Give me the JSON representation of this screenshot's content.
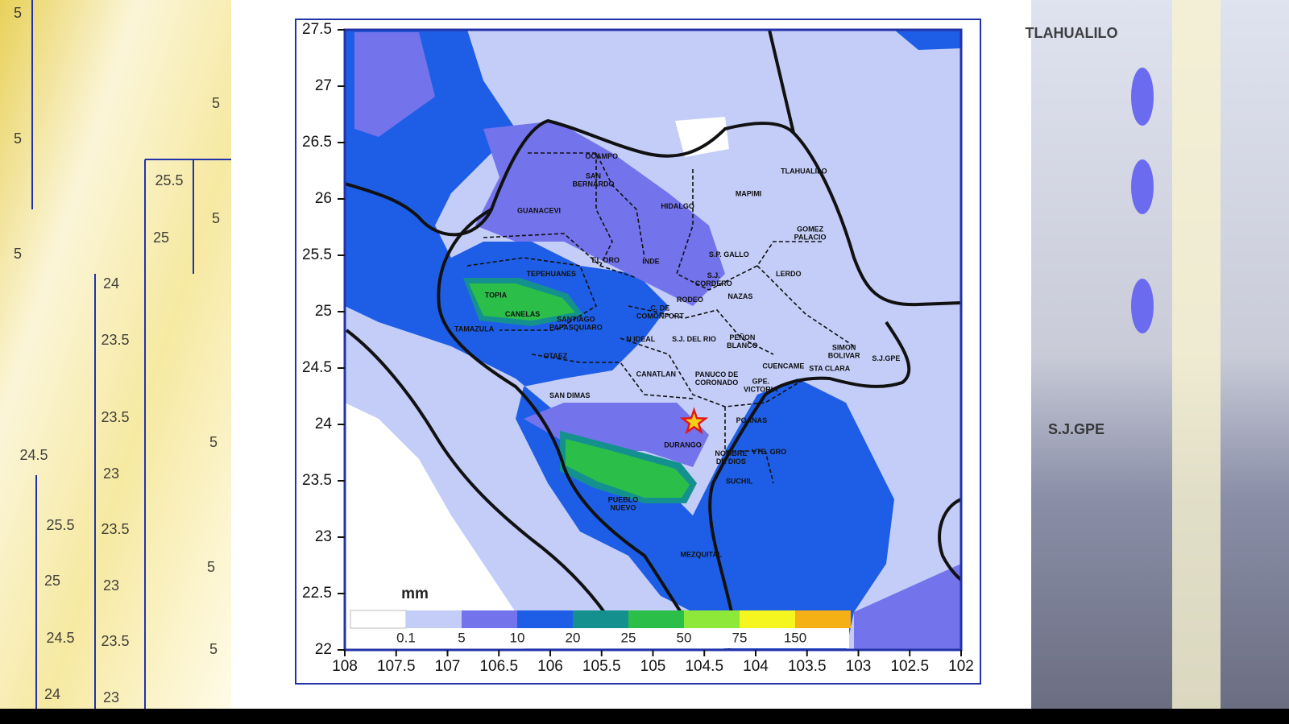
{
  "map": {
    "xlim": [
      108,
      102
    ],
    "ylim": [
      22,
      27.5
    ],
    "xticks": [
      108,
      107.5,
      107,
      106.5,
      106,
      105.5,
      105,
      104.5,
      104,
      103.5,
      103,
      102.5,
      102
    ],
    "yticks": [
      27.5,
      27,
      26.5,
      26,
      25.5,
      25,
      24.5,
      24,
      23.5,
      23,
      22.5,
      22
    ],
    "places": [
      {
        "lines": [
          "OCAMPO"
        ],
        "lon": 105.5,
        "lat": 26.37
      },
      {
        "lines": [
          "SAN",
          "BERNARDO"
        ],
        "lon": 105.58,
        "lat": 26.16
      },
      {
        "lines": [
          "GUANACEVI"
        ],
        "lon": 106.11,
        "lat": 25.89
      },
      {
        "lines": [
          "HIDALGO"
        ],
        "lon": 104.76,
        "lat": 25.93
      },
      {
        "lines": [
          "MAPIMI"
        ],
        "lon": 104.07,
        "lat": 26.04
      },
      {
        "lines": [
          "TLAHUALILO"
        ],
        "lon": 103.53,
        "lat": 26.24
      },
      {
        "lines": [
          "GOMEZ",
          "PALACIO"
        ],
        "lon": 103.47,
        "lat": 25.69
      },
      {
        "lines": [
          "S.P. GALLO"
        ],
        "lon": 104.26,
        "lat": 25.5
      },
      {
        "lines": [
          "EL ORO"
        ],
        "lon": 105.46,
        "lat": 25.45
      },
      {
        "lines": [
          "INDE"
        ],
        "lon": 105.02,
        "lat": 25.44
      },
      {
        "lines": [
          "TEPEHUANES"
        ],
        "lon": 105.99,
        "lat": 25.33
      },
      {
        "lines": [
          "S.J.",
          "CORDERO"
        ],
        "lon": 104.41,
        "lat": 25.28
      },
      {
        "lines": [
          "LERDO"
        ],
        "lon": 103.68,
        "lat": 25.33
      },
      {
        "lines": [
          "TOPIA"
        ],
        "lon": 106.53,
        "lat": 25.14
      },
      {
        "lines": [
          "RODEO"
        ],
        "lon": 104.64,
        "lat": 25.1
      },
      {
        "lines": [
          "NAZAS"
        ],
        "lon": 104.15,
        "lat": 25.13
      },
      {
        "lines": [
          "CANELAS"
        ],
        "lon": 106.27,
        "lat": 24.97
      },
      {
        "lines": [
          "C. DE",
          "COMONFORT"
        ],
        "lon": 104.93,
        "lat": 24.99
      },
      {
        "lines": [
          "SANTIAGO",
          "PAPASQUIARO"
        ],
        "lon": 105.75,
        "lat": 24.89
      },
      {
        "lines": [
          "TAMAZULA"
        ],
        "lon": 106.74,
        "lat": 24.84
      },
      {
        "lines": [
          "N IDEAL"
        ],
        "lon": 105.12,
        "lat": 24.75
      },
      {
        "lines": [
          "S.J. DEL RIO"
        ],
        "lon": 104.6,
        "lat": 24.75
      },
      {
        "lines": [
          "PEÑON",
          "BLANCO"
        ],
        "lon": 104.13,
        "lat": 24.73
      },
      {
        "lines": [
          "OTAEZ"
        ],
        "lon": 105.95,
        "lat": 24.6
      },
      {
        "lines": [
          "SIMON",
          "BOLIVAR"
        ],
        "lon": 103.14,
        "lat": 24.64
      },
      {
        "lines": [
          "S.J.GPE"
        ],
        "lon": 102.73,
        "lat": 24.58
      },
      {
        "lines": [
          "CUENCAME"
        ],
        "lon": 103.73,
        "lat": 24.51
      },
      {
        "lines": [
          "STA CLARA"
        ],
        "lon": 103.28,
        "lat": 24.49
      },
      {
        "lines": [
          "CANATLAN"
        ],
        "lon": 104.97,
        "lat": 24.44
      },
      {
        "lines": [
          "PANUCO DE",
          "CORONADO"
        ],
        "lon": 104.38,
        "lat": 24.4
      },
      {
        "lines": [
          "GPE.",
          "VICTORIA"
        ],
        "lon": 103.95,
        "lat": 24.34
      },
      {
        "lines": [
          "SAN DIMAS"
        ],
        "lon": 105.81,
        "lat": 24.25
      },
      {
        "lines": [
          "POANAS"
        ],
        "lon": 104.04,
        "lat": 24.03
      },
      {
        "lines": [
          "DURANGO"
        ],
        "lon": 104.71,
        "lat": 23.81
      },
      {
        "lines": [
          "NOMBRE",
          "DE DIOS"
        ],
        "lon": 104.24,
        "lat": 23.7
      },
      {
        "lines": [
          "VTE. GRO"
        ],
        "lon": 103.87,
        "lat": 23.75
      },
      {
        "lines": [
          "SUCHIL"
        ],
        "lon": 104.16,
        "lat": 23.49
      },
      {
        "lines": [
          "PUEBLO",
          "NUEVO"
        ],
        "lon": 105.29,
        "lat": 23.29
      },
      {
        "lines": [
          "MEZQUITAL"
        ],
        "lon": 104.53,
        "lat": 22.84
      }
    ],
    "marker": {
      "lon": 104.6,
      "lat": 24.02
    },
    "legend": {
      "unit": "mm",
      "colors": [
        "#ffffff",
        "#c3cdf7",
        "#7373ec",
        "#1e5ee6",
        "#14918f",
        "#2bbf4a",
        "#8de83a",
        "#f5f520",
        "#f5b016"
      ],
      "levels": [
        0.1,
        5,
        10,
        20,
        25,
        50,
        75,
        150
      ]
    }
  },
  "background_labels": [
    "5",
    "5",
    "5",
    "25.5",
    "25",
    "24",
    "23.5",
    "23.5",
    "23",
    "23.5",
    "23",
    "23.5",
    "23",
    "24.5",
    "25.5",
    "25",
    "24.5",
    "24",
    "5",
    "5",
    "5",
    "5",
    "5",
    "TLAHUALILO",
    "S.J.GPE"
  ]
}
